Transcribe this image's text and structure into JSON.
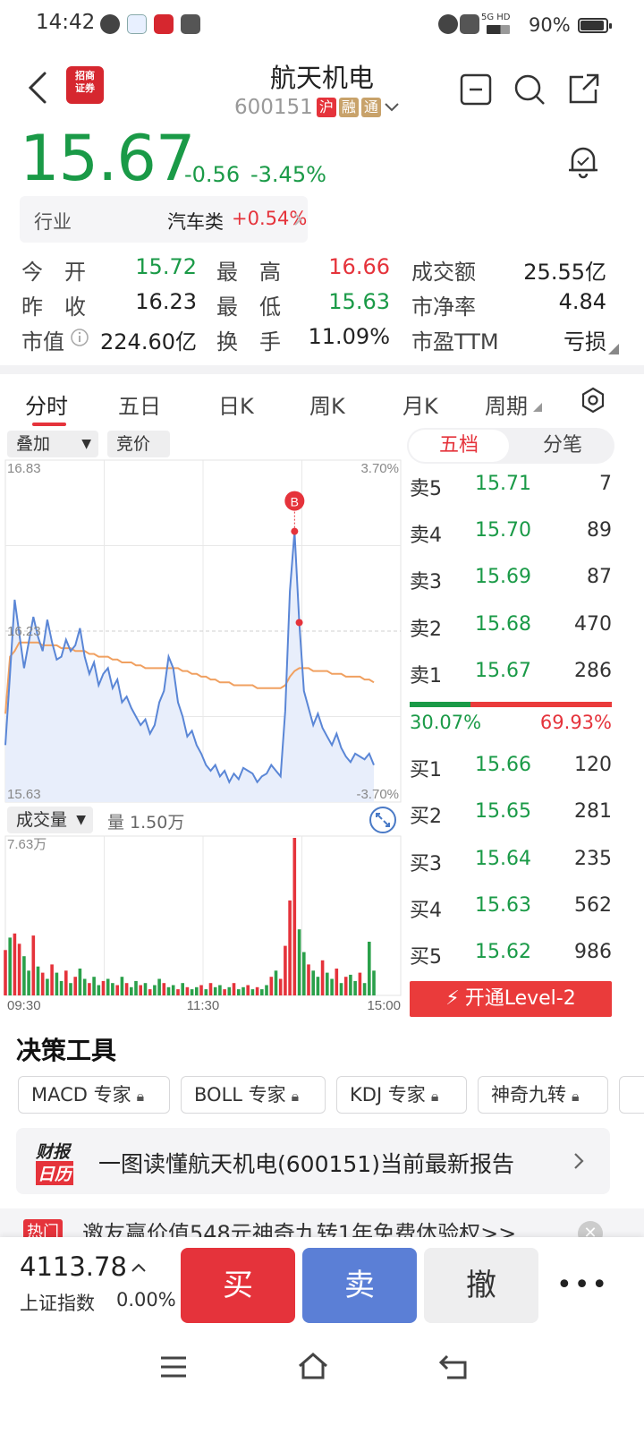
{
  "status_bar": {
    "time": "14:42",
    "network": "5G HD",
    "battery": "90%"
  },
  "header": {
    "broker_logo": "招商证券",
    "title": "航天机电",
    "code": "600151",
    "tags": [
      "沪",
      "融",
      "通"
    ]
  },
  "quote": {
    "price": "15.67",
    "change": "-0.56",
    "change_pct": "-3.45%",
    "industry_label": "行业",
    "industry_name": "汽车类",
    "industry_pct": "+0.54%",
    "stats": [
      {
        "label": "今　开",
        "value": "15.72",
        "color": "#1a9a47"
      },
      {
        "label": "最　高",
        "value": "16.66",
        "color": "#e5333b"
      },
      {
        "label": "成交额",
        "value": "25.55亿",
        "color": "#222222"
      },
      {
        "label": "昨　收",
        "value": "16.23",
        "color": "#222222"
      },
      {
        "label": "最　低",
        "value": "15.63",
        "color": "#1a9a47"
      },
      {
        "label": "市净率",
        "value": "4.84",
        "color": "#222222"
      },
      {
        "label": "市值",
        "value": "224.60亿",
        "color": "#222222"
      },
      {
        "label": "换　手",
        "value": "11.09%",
        "color": "#222222"
      },
      {
        "label": "市盈TTM",
        "value": "亏损",
        "color": "#222222"
      }
    ]
  },
  "tabs": [
    "分时",
    "五日",
    "日K",
    "周K",
    "月K",
    "周期"
  ],
  "chart_controls": {
    "overlay": "叠加",
    "auction": "竞价",
    "volume_label": "成交量",
    "volume_value": "量 1.50万"
  },
  "chart_data": {
    "type": "line",
    "y_max_label": "16.83",
    "y_mid_label": "16.23",
    "y_min_label": "15.63",
    "pct_max_label": "3.70%",
    "pct_min_label": "-3.70%",
    "ylim": [
      15.63,
      16.83
    ],
    "x_labels": [
      "09:30",
      "11:30",
      "15:00"
    ],
    "marker": "B",
    "series": [
      {
        "values": [
          15.83,
          16.08,
          16.34,
          16.22,
          16.1,
          16.19,
          16.28,
          16.21,
          16.16,
          16.27,
          16.19,
          16.13,
          16.14,
          16.2,
          16.16,
          16.18,
          16.24,
          16.14,
          16.08,
          16.12,
          16.04,
          16.08,
          16.1,
          16.03,
          16.06,
          15.98,
          16.0,
          15.96,
          15.93,
          15.9,
          15.92,
          15.87,
          15.9,
          15.98,
          16.02,
          16.14,
          16.1,
          15.98,
          15.93,
          15.86,
          15.88,
          15.83,
          15.8,
          15.76,
          15.74,
          15.76,
          15.72,
          15.74,
          15.7,
          15.73,
          15.71,
          15.75,
          15.74,
          15.73,
          15.7,
          15.72,
          15.73,
          15.76,
          15.74,
          15.72,
          15.95,
          16.37,
          16.58,
          16.26,
          16.02,
          15.96,
          15.9,
          15.94,
          15.89,
          15.86,
          15.83,
          15.87,
          15.82,
          15.79,
          15.77,
          15.8,
          15.79,
          15.78,
          15.8,
          15.76
        ]
      },
      {
        "values": [
          15.94,
          16.14,
          16.16,
          16.19,
          16.19,
          16.19,
          16.19,
          16.19,
          16.18,
          16.18,
          16.18,
          16.18,
          16.17,
          16.17,
          16.17,
          16.16,
          16.16,
          16.16,
          16.15,
          16.15,
          16.14,
          16.14,
          16.14,
          16.13,
          16.13,
          16.12,
          16.12,
          16.12,
          16.11,
          16.11,
          16.1,
          16.1,
          16.1,
          16.1,
          16.1,
          16.1,
          16.1,
          16.1,
          16.09,
          16.09,
          16.08,
          16.08,
          16.07,
          16.07,
          16.06,
          16.06,
          16.05,
          16.05,
          16.05,
          16.04,
          16.04,
          16.04,
          16.04,
          16.04,
          16.03,
          16.03,
          16.03,
          16.03,
          16.03,
          16.03,
          16.04,
          16.07,
          16.09,
          16.1,
          16.1,
          16.1,
          16.09,
          16.09,
          16.09,
          16.09,
          16.08,
          16.08,
          16.08,
          16.07,
          16.07,
          16.07,
          16.07,
          16.06,
          16.06,
          16.05
        ]
      }
    ],
    "volume": {
      "max_label": "7.63万",
      "values": [
        2.2,
        2.8,
        3.0,
        2.5,
        1.9,
        1.2,
        2.9,
        1.4,
        1.1,
        0.8,
        1.5,
        1.1,
        0.7,
        1.2,
        0.6,
        0.9,
        1.3,
        0.8,
        0.6,
        0.9,
        0.5,
        0.7,
        0.8,
        0.6,
        0.5,
        0.9,
        0.6,
        0.4,
        0.7,
        0.5,
        0.6,
        0.3,
        0.5,
        0.8,
        0.6,
        0.4,
        0.5,
        0.3,
        0.6,
        0.4,
        0.3,
        0.4,
        0.5,
        0.3,
        0.6,
        0.4,
        0.5,
        0.3,
        0.4,
        0.6,
        0.3,
        0.4,
        0.5,
        0.3,
        0.4,
        0.3,
        0.5,
        0.9,
        1.2,
        0.8,
        2.4,
        4.6,
        7.63,
        3.2,
        2.1,
        1.5,
        1.2,
        0.9,
        1.7,
        1.1,
        0.8,
        1.3,
        0.6,
        0.9,
        1.0,
        0.7,
        1.1,
        0.6,
        2.6,
        1.2
      ],
      "colors": [
        "r",
        "g",
        "r",
        "r",
        "g",
        "g",
        "r",
        "g",
        "r",
        "g",
        "r",
        "g",
        "g",
        "r",
        "g",
        "r",
        "g",
        "g",
        "r",
        "g",
        "g",
        "r",
        "g",
        "g",
        "r",
        "g",
        "r",
        "g",
        "g",
        "r",
        "g",
        "r",
        "g",
        "g",
        "r",
        "g",
        "g",
        "r",
        "g",
        "r",
        "g",
        "g",
        "r",
        "g",
        "r",
        "g",
        "g",
        "r",
        "g",
        "r",
        "g",
        "g",
        "r",
        "g",
        "r",
        "g",
        "g",
        "r",
        "g",
        "r",
        "r",
        "r",
        "r",
        "g",
        "g",
        "r",
        "g",
        "g",
        "r",
        "g",
        "g",
        "r",
        "g",
        "r",
        "g",
        "g",
        "r",
        "g",
        "g",
        "g"
      ]
    }
  },
  "order_book": {
    "mode_tabs": [
      "五档",
      "分笔"
    ],
    "asks": [
      {
        "label": "卖5",
        "price": "15.71",
        "vol": "7"
      },
      {
        "label": "卖4",
        "price": "15.70",
        "vol": "89"
      },
      {
        "label": "卖3",
        "price": "15.69",
        "vol": "87"
      },
      {
        "label": "卖2",
        "price": "15.68",
        "vol": "470"
      },
      {
        "label": "卖1",
        "price": "15.67",
        "vol": "286"
      }
    ],
    "ratio_buy": "30.07%",
    "ratio_sell": "69.93%",
    "ratio_buy_fraction": 0.3007,
    "bids": [
      {
        "label": "买1",
        "price": "15.66",
        "vol": "120"
      },
      {
        "label": "买2",
        "price": "15.65",
        "vol": "281"
      },
      {
        "label": "买3",
        "price": "15.64",
        "vol": "235"
      },
      {
        "label": "买4",
        "price": "15.63",
        "vol": "562"
      },
      {
        "label": "买5",
        "price": "15.62",
        "vol": "986"
      }
    ],
    "level2_button": "开通Level-2"
  },
  "tools": {
    "title": "决策工具",
    "items": [
      "MACD 专家",
      "BOLL 专家",
      "KDJ 专家",
      "神奇九转"
    ]
  },
  "report": {
    "logo_top": "财报",
    "logo_bottom": "日历",
    "text": "一图读懂航天机电(600151)当前最新报告"
  },
  "hot": {
    "badge": "热门",
    "text": "邀友赢价值548元神奇九转1年免费体验权>>"
  },
  "bottom_bar": {
    "index_value": "4113.78",
    "index_name": "上证指数",
    "index_pct": "0.00%",
    "buy": "买",
    "sell": "卖",
    "cancel": "撤"
  },
  "colors": {
    "up": "#e5333b",
    "down": "#1a9a47",
    "line": "#5a86d6",
    "avg": "#f0a060"
  }
}
